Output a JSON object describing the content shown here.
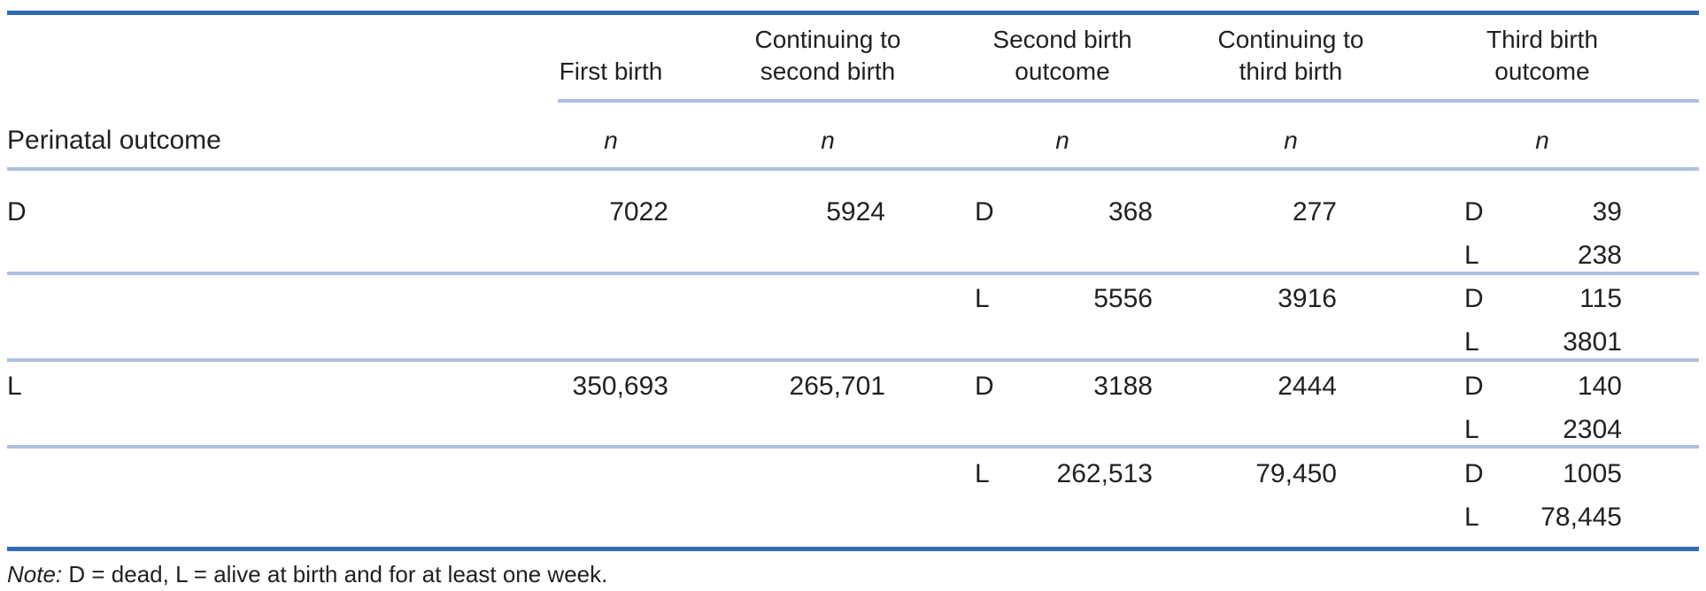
{
  "header": {
    "row_label": "Perinatal outcome",
    "columns": [
      {
        "line1": "",
        "line2": "First birth",
        "unit": "n"
      },
      {
        "line1": "Continuing to",
        "line2": "second birth",
        "unit": "n"
      },
      {
        "line1": "Second birth",
        "line2": "outcome",
        "unit": "n"
      },
      {
        "line1": "Continuing to",
        "line2": "third birth",
        "unit": "n"
      },
      {
        "line1": "Third birth",
        "line2": "outcome",
        "unit": "n"
      }
    ]
  },
  "rows": [
    {
      "first_outcome": "D",
      "first_n": "7022",
      "cont2": "5924",
      "second_outcome": "D",
      "second_n": "368",
      "cont3": "277",
      "third": [
        {
          "outcome": "D",
          "n": "39"
        },
        {
          "outcome": "L",
          "n": "238"
        }
      ]
    },
    {
      "first_outcome": "",
      "first_n": "",
      "cont2": "",
      "second_outcome": "L",
      "second_n": "5556",
      "cont3": "3916",
      "third": [
        {
          "outcome": "D",
          "n": "115"
        },
        {
          "outcome": "L",
          "n": "3801"
        }
      ]
    },
    {
      "first_outcome": "L",
      "first_n": "350,693",
      "cont2": "265,701",
      "second_outcome": "D",
      "second_n": "3188",
      "cont3": "2444",
      "third": [
        {
          "outcome": "D",
          "n": "140"
        },
        {
          "outcome": "L",
          "n": "2304"
        }
      ]
    },
    {
      "first_outcome": "",
      "first_n": "",
      "cont2": "",
      "second_outcome": "L",
      "second_n": "262,513",
      "cont3": "79,450",
      "third": [
        {
          "outcome": "D",
          "n": "1005"
        },
        {
          "outcome": "L",
          "n": "78,445"
        }
      ]
    }
  ],
  "note": {
    "label": "Note:",
    "text": " D = dead, L = alive at birth and for at least one week."
  }
}
